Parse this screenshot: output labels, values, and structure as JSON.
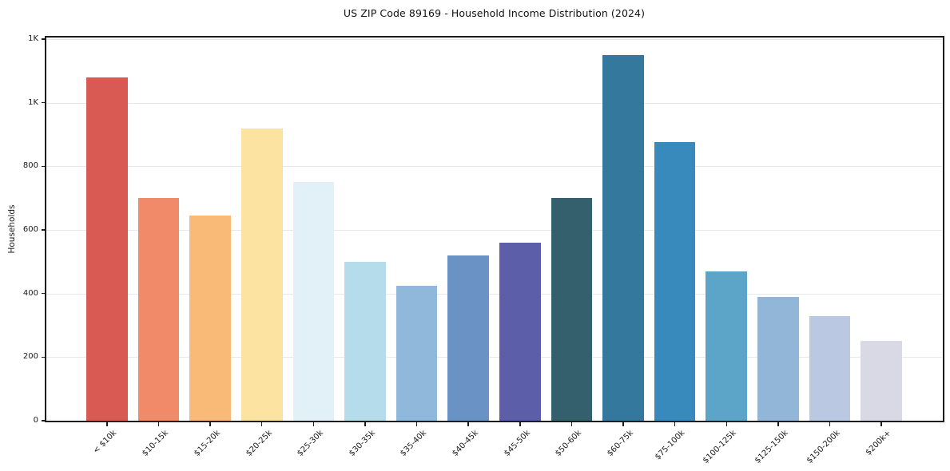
{
  "chart_data": {
    "type": "bar",
    "title": "US ZIP Code 89169 - Household Income Distribution (2024)",
    "xlabel": "",
    "ylabel": "Households",
    "categories": [
      "< $10k",
      "$10-15k",
      "$15-20k",
      "$20-25k",
      "$25-30k",
      "$30-35k",
      "$35-40k",
      "$40-45k",
      "$45-50k",
      "$50-60k",
      "$60-75k",
      "$75-100k",
      "$100-125k",
      "$125-150k",
      "$150-200k",
      "$200k+"
    ],
    "values": [
      1080,
      700,
      645,
      920,
      750,
      500,
      425,
      520,
      560,
      700,
      1150,
      875,
      470,
      390,
      330,
      250
    ],
    "bar_colors": [
      "#d95a52",
      "#f18a68",
      "#f9ba77",
      "#fce3a2",
      "#e2f0f7",
      "#b4dcea",
      "#8fb8da",
      "#6b92c4",
      "#5c5ea9",
      "#34606e",
      "#35789d",
      "#388abc",
      "#5ca5c8",
      "#92b6d7",
      "#bac9e1",
      "#d9d9e6"
    ],
    "ylim": [
      0,
      1207.5
    ],
    "yticks": [
      {
        "value": 0,
        "label": "0"
      },
      {
        "value": 200,
        "label": "200"
      },
      {
        "value": 400,
        "label": "400"
      },
      {
        "value": 600,
        "label": "600"
      },
      {
        "value": 800,
        "label": "800"
      },
      {
        "value": 1000,
        "label": "1K"
      },
      {
        "value": 1200,
        "label": "1K"
      }
    ],
    "grid": "horizontal",
    "legend": "none",
    "background_color": "#ffffff",
    "grid_color": "#e7e7ee",
    "spine_color": "#1c1c1c"
  }
}
